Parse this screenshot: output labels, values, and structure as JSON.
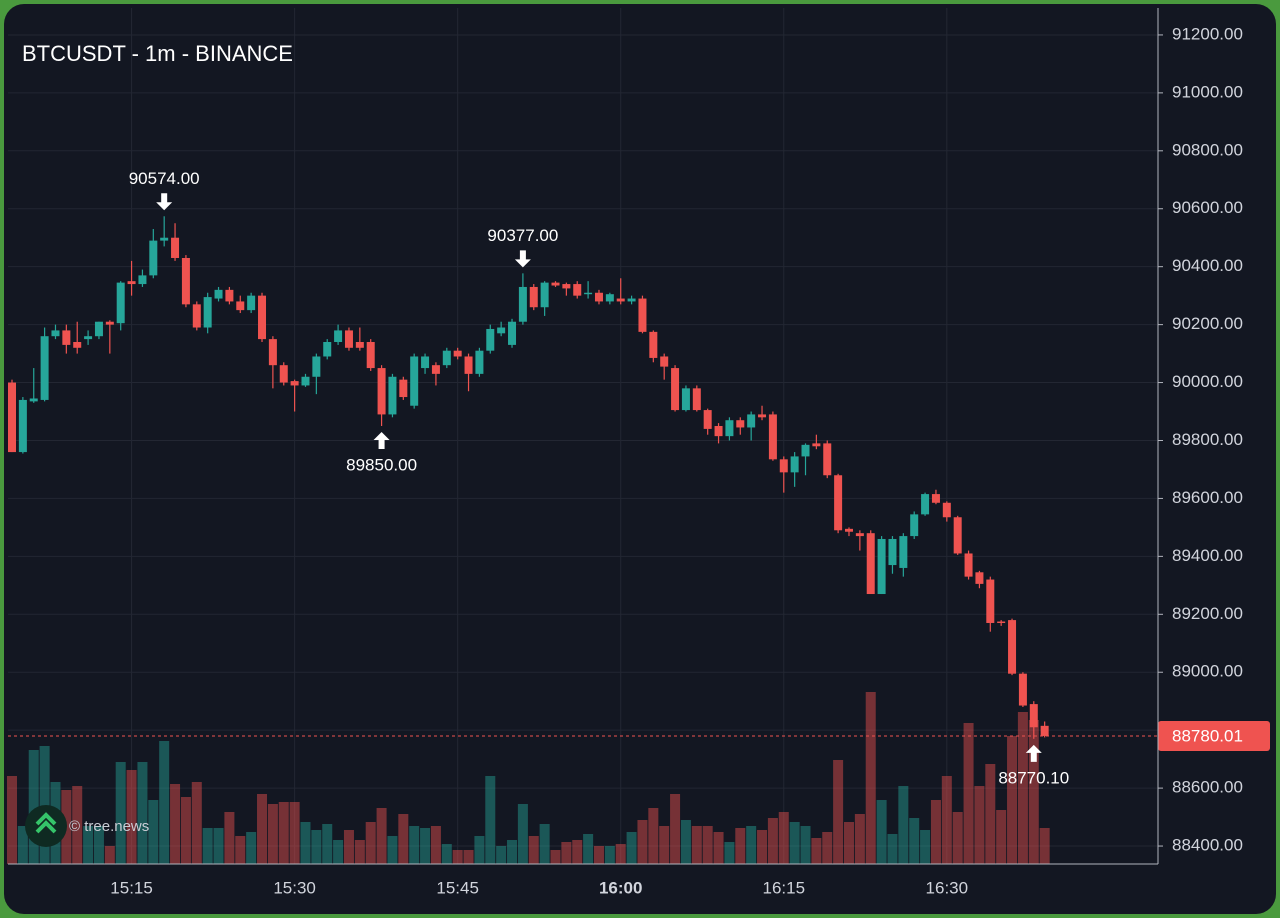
{
  "chart_data": {
    "type": "candlestick",
    "title": "BTCUSDT - 1m - BINANCE",
    "watermark": "© tree.news",
    "up_color": "#26a69a",
    "down_color": "#ef5350",
    "grid": true,
    "x": [
      "15:04",
      "15:05",
      "15:06",
      "15:07",
      "15:08",
      "15:09",
      "15:10",
      "15:11",
      "15:12",
      "15:13",
      "15:14",
      "15:15",
      "15:16",
      "15:17",
      "15:18",
      "15:19",
      "15:20",
      "15:21",
      "15:22",
      "15:23",
      "15:24",
      "15:25",
      "15:26",
      "15:27",
      "15:28",
      "15:29",
      "15:30",
      "15:31",
      "15:32",
      "15:33",
      "15:34",
      "15:35",
      "15:36",
      "15:37",
      "15:38",
      "15:39",
      "15:40",
      "15:41",
      "15:42",
      "15:43",
      "15:44",
      "15:45",
      "15:46",
      "15:47",
      "15:48",
      "15:49",
      "15:50",
      "15:51",
      "15:52",
      "15:53",
      "15:54",
      "15:55",
      "15:56",
      "15:57",
      "15:58",
      "15:59",
      "16:00",
      "16:01",
      "16:02",
      "16:03",
      "16:04",
      "16:05",
      "16:06",
      "16:07",
      "16:08",
      "16:09",
      "16:10",
      "16:11",
      "16:12",
      "16:13",
      "16:14",
      "16:15",
      "16:16",
      "16:17",
      "16:18",
      "16:19",
      "16:20",
      "16:21",
      "16:22",
      "16:23",
      "16:24",
      "16:25",
      "16:26",
      "16:27",
      "16:28",
      "16:29",
      "16:30",
      "16:31",
      "16:32",
      "16:33",
      "16:34",
      "16:35",
      "16:36",
      "16:37",
      "16:38",
      "16:39"
    ],
    "open": [
      90000,
      89760,
      89935,
      89940,
      90160,
      90180,
      90140,
      90150,
      90160,
      90210,
      90205,
      90350,
      90340,
      90370,
      90490,
      90500,
      90430,
      90270,
      90190,
      90290,
      90320,
      90280,
      90250,
      90300,
      90150,
      90060,
      90005,
      89990,
      90020,
      90090,
      90140,
      90180,
      90140,
      90140,
      90050,
      89890,
      90010,
      89920,
      90050,
      90060,
      90060,
      90110,
      90090,
      90030,
      90110,
      90170,
      90130,
      90210,
      90330,
      90260,
      90345,
      90340,
      90340,
      90305,
      90310,
      90280,
      90290,
      90280,
      90290,
      90175,
      90090,
      90050,
      89905,
      89980,
      89905,
      89850,
      89815,
      89870,
      89845,
      89890,
      89890,
      89735,
      89690,
      89745,
      89790,
      89790,
      89680,
      89495,
      89480,
      89480,
      89270,
      89370,
      89360,
      89470,
      89545,
      89615,
      89585,
      89535,
      89410,
      89345,
      89320,
      89175,
      89180,
      88995,
      88890,
      88815
    ],
    "high": [
      90010,
      89950,
      90050,
      90190,
      90200,
      90200,
      90210,
      90180,
      90210,
      90215,
      90350,
      90420,
      90390,
      90530,
      90574,
      90550,
      90440,
      90280,
      90310,
      90330,
      90330,
      90300,
      90310,
      90310,
      90160,
      90070,
      90010,
      90030,
      90100,
      90150,
      90200,
      90190,
      90190,
      90150,
      90060,
      90030,
      90020,
      90100,
      90100,
      90070,
      90120,
      90120,
      90100,
      90120,
      90200,
      90210,
      90220,
      90377,
      90340,
      90350,
      90350,
      90345,
      90350,
      90350,
      90320,
      90310,
      90360,
      90300,
      90300,
      90180,
      90100,
      90060,
      89990,
      89990,
      89910,
      89860,
      89880,
      89880,
      89900,
      89920,
      89900,
      89745,
      89760,
      89790,
      89820,
      89800,
      89685,
      89500,
      89490,
      89490,
      89470,
      89470,
      89480,
      89555,
      89620,
      89630,
      89590,
      89540,
      89420,
      89350,
      89330,
      89180,
      89185,
      89000,
      88900,
      88830
    ],
    "low": [
      89760,
      89755,
      89930,
      89935,
      90150,
      90100,
      90100,
      90130,
      90150,
      90100,
      90180,
      90300,
      90330,
      90360,
      90470,
      90420,
      90260,
      90180,
      90170,
      90280,
      90270,
      90240,
      90240,
      90140,
      89980,
      89990,
      89900,
      89985,
      89960,
      90080,
      90130,
      90110,
      90110,
      90040,
      89850,
      89880,
      89940,
      89910,
      90030,
      89990,
      90050,
      90080,
      89970,
      90020,
      90100,
      90160,
      90120,
      90200,
      90250,
      90230,
      90330,
      90300,
      90290,
      90290,
      90270,
      90270,
      90270,
      90270,
      90170,
      90070,
      90010,
      89900,
      89900,
      89900,
      89820,
      89790,
      89800,
      89820,
      89800,
      89870,
      89730,
      89620,
      89640,
      89680,
      89770,
      89670,
      89480,
      89470,
      89420,
      89270,
      89270,
      89340,
      89330,
      89460,
      89540,
      89580,
      89520,
      89405,
      89320,
      89290,
      89140,
      89160,
      88990,
      88880,
      88770.1,
      88775
    ],
    "close": [
      89760,
      89940,
      89945,
      90160,
      90180,
      90130,
      90120,
      90160,
      90210,
      90200,
      90345,
      90340,
      90370,
      90490,
      90500,
      90430,
      90270,
      90190,
      90295,
      90320,
      90280,
      90250,
      90300,
      90150,
      90060,
      90000,
      89990,
      90020,
      90090,
      90140,
      90180,
      90120,
      90120,
      90050,
      89890,
      90020,
      89950,
      90090,
      90090,
      90030,
      90110,
      90090,
      90030,
      90110,
      90185,
      90190,
      90210,
      90330,
      90260,
      90345,
      90335,
      90325,
      90300,
      90310,
      90280,
      90305,
      90280,
      90290,
      90175,
      90085,
      90055,
      89905,
      89980,
      89905,
      89840,
      89815,
      89870,
      89845,
      89890,
      89880,
      89735,
      89690,
      89745,
      89785,
      89780,
      89680,
      89490,
      89485,
      89470,
      89270,
      89460,
      89460,
      89470,
      89545,
      89615,
      89585,
      89535,
      89410,
      89330,
      89305,
      89170,
      89170,
      88995,
      88885,
      88810,
      88780.01
    ],
    "volume": [
      88,
      38,
      114,
      118,
      82,
      74,
      78,
      38,
      38,
      18,
      102,
      94,
      102,
      64,
      123,
      80,
      67,
      82,
      36,
      36,
      52,
      28,
      32,
      70,
      60,
      62,
      62,
      42,
      34,
      40,
      24,
      34,
      24,
      42,
      56,
      28,
      50,
      38,
      36,
      38,
      20,
      14,
      14,
      28,
      88,
      18,
      24,
      60,
      28,
      40,
      14,
      22,
      24,
      30,
      18,
      18,
      20,
      32,
      44,
      56,
      38,
      70,
      44,
      38,
      38,
      32,
      22,
      36,
      38,
      34,
      46,
      52,
      42,
      38,
      26,
      32,
      104,
      42,
      50,
      172,
      64,
      30,
      78,
      46,
      34,
      64,
      88,
      52,
      141,
      78,
      100,
      54,
      128,
      152,
      144,
      36
    ],
    "ylim": [
      88338,
      91293
    ],
    "yticks": [
      {
        "value": 88400,
        "label": "88400.00"
      },
      {
        "value": 88600,
        "label": "88600.00"
      },
      {
        "value": 88800,
        "label": "88800.00"
      },
      {
        "value": 89000,
        "label": "89000.00"
      },
      {
        "value": 89200,
        "label": "89200.00"
      },
      {
        "value": 89400,
        "label": "89400.00"
      },
      {
        "value": 89600,
        "label": "89600.00"
      },
      {
        "value": 89800,
        "label": "89800.00"
      },
      {
        "value": 90000,
        "label": "90000.00"
      },
      {
        "value": 90200,
        "label": "90200.00"
      },
      {
        "value": 90400,
        "label": "90400.00"
      },
      {
        "value": 90600,
        "label": "90600.00"
      },
      {
        "value": 90800,
        "label": "90800.00"
      },
      {
        "value": 91000,
        "label": "91000.00"
      },
      {
        "value": 91200,
        "label": "91200.00"
      }
    ],
    "xticks": [
      "15:15",
      "15:30",
      "15:45",
      "16:00",
      "16:15",
      "16:30"
    ],
    "annotations": [
      {
        "x": "15:18",
        "value": 90574,
        "label": "90574.00"
      },
      {
        "x": "15:38",
        "value": 89850,
        "label": "89850.00"
      },
      {
        "x": "15:51",
        "value": 90377,
        "label": "90377.00"
      },
      {
        "x": "16:38",
        "value": 88770.1,
        "label": "88770.10"
      }
    ],
    "last_price": {
      "value": 88780.01,
      "label": "88780.01"
    }
  }
}
